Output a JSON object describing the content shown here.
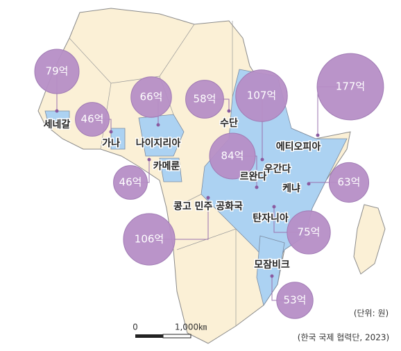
{
  "unit_note": "(단위: 원)",
  "source": "(한국 국제 협력단, 2023)",
  "scale_bar": {
    "start": "0",
    "end": "1,000㎞"
  },
  "countries": [
    {
      "name": "세네갈",
      "value": 79,
      "value_label": "79억"
    },
    {
      "name": "가나",
      "value": 46,
      "value_label": "46억"
    },
    {
      "name": "나이지리아",
      "value": 66,
      "value_label": "66억"
    },
    {
      "name": "수단",
      "value": 58,
      "value_label": "58억"
    },
    {
      "name": "우간다",
      "value": 107,
      "value_label": "107억"
    },
    {
      "name": "에티오피아",
      "value": 177,
      "value_label": "177억"
    },
    {
      "name": "르완다",
      "value": 84,
      "value_label": "84억"
    },
    {
      "name": "케냐",
      "value": 63,
      "value_label": "63억"
    },
    {
      "name": "카메룬",
      "value": 46,
      "value_label": "46억"
    },
    {
      "name": "콩고 민주 공화국",
      "value": 106,
      "value_label": "106억"
    },
    {
      "name": "탄자니아",
      "value": 75,
      "value_label": "75억"
    },
    {
      "name": "모잠비크",
      "value": 53,
      "value_label": "53억"
    }
  ]
}
